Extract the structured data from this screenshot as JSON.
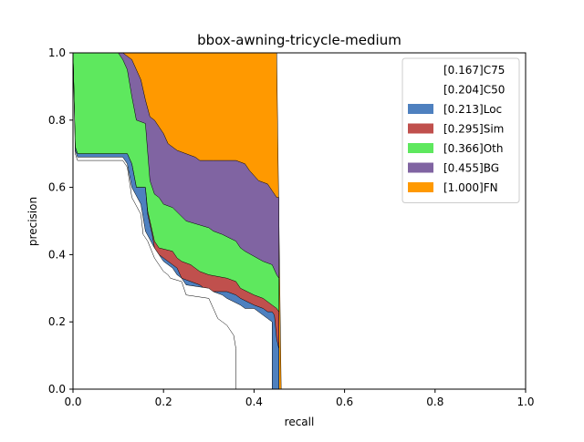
{
  "chart_data": {
    "type": "area",
    "title": "bbox-awning-tricycle-medium",
    "xlabel": "recall",
    "ylabel": "precision",
    "xlim": [
      0,
      1
    ],
    "ylim": [
      0,
      1
    ],
    "x_ticks": [
      "0.0",
      "0.2",
      "0.4",
      "0.6",
      "0.8",
      "1.0"
    ],
    "y_ticks": [
      "0.0",
      "0.2",
      "0.4",
      "0.6",
      "0.8",
      "1.0"
    ],
    "grid": false,
    "legend_position": "top-right",
    "series": [
      {
        "name": "[0.167]C75",
        "color": "#ffffff",
        "ap": 0.167,
        "x": [
          0.0,
          0.005,
          0.01,
          0.11,
          0.12,
          0.13,
          0.15,
          0.155,
          0.16,
          0.165,
          0.18,
          0.19,
          0.2,
          0.21,
          0.215,
          0.24,
          0.25,
          0.3,
          0.31,
          0.32,
          0.33,
          0.34,
          0.345,
          0.355,
          0.36,
          0.36
        ],
        "y": [
          1.0,
          0.7,
          0.68,
          0.68,
          0.66,
          0.57,
          0.52,
          0.46,
          0.45,
          0.44,
          0.39,
          0.37,
          0.35,
          0.34,
          0.33,
          0.32,
          0.28,
          0.27,
          0.24,
          0.21,
          0.2,
          0.19,
          0.18,
          0.16,
          0.12,
          0.0
        ]
      },
      {
        "name": "[0.204]C50",
        "color": "#ffffff",
        "ap": 0.204,
        "x": [
          0.0,
          0.005,
          0.01,
          0.11,
          0.12,
          0.13,
          0.15,
          0.16,
          0.18,
          0.19,
          0.2,
          0.22,
          0.23,
          0.24,
          0.25,
          0.3,
          0.31,
          0.33,
          0.34,
          0.37,
          0.38,
          0.4,
          0.41,
          0.42,
          0.43,
          0.44,
          0.44
        ],
        "y": [
          1.0,
          0.71,
          0.69,
          0.69,
          0.67,
          0.6,
          0.55,
          0.47,
          0.42,
          0.4,
          0.38,
          0.36,
          0.34,
          0.33,
          0.31,
          0.3,
          0.29,
          0.28,
          0.27,
          0.25,
          0.24,
          0.24,
          0.23,
          0.22,
          0.21,
          0.2,
          0.0
        ]
      },
      {
        "name": "[0.213]Loc",
        "color": "#4e80bf",
        "ap": 0.213,
        "x": [
          0.0,
          0.005,
          0.01,
          0.12,
          0.13,
          0.14,
          0.16,
          0.165,
          0.175,
          0.18,
          0.19,
          0.22,
          0.23,
          0.24,
          0.26,
          0.28,
          0.3,
          0.34,
          0.36,
          0.37,
          0.4,
          0.42,
          0.43,
          0.44,
          0.445,
          0.45,
          0.455,
          0.455
        ],
        "y": [
          1.0,
          0.72,
          0.7,
          0.7,
          0.67,
          0.6,
          0.6,
          0.52,
          0.46,
          0.42,
          0.4,
          0.37,
          0.36,
          0.33,
          0.32,
          0.31,
          0.29,
          0.29,
          0.28,
          0.27,
          0.25,
          0.24,
          0.23,
          0.23,
          0.22,
          0.15,
          0.12,
          0.0
        ]
      },
      {
        "name": "[0.295]Sim",
        "color": "#c0504d",
        "ap": 0.295,
        "x": [
          0.0,
          0.005,
          0.01,
          0.12,
          0.13,
          0.14,
          0.16,
          0.165,
          0.175,
          0.18,
          0.19,
          0.22,
          0.23,
          0.24,
          0.26,
          0.28,
          0.3,
          0.34,
          0.36,
          0.37,
          0.4,
          0.42,
          0.44,
          0.45,
          0.455,
          0.455
        ],
        "y": [
          1.0,
          0.72,
          0.7,
          0.7,
          0.67,
          0.6,
          0.6,
          0.53,
          0.47,
          0.44,
          0.42,
          0.41,
          0.39,
          0.38,
          0.37,
          0.35,
          0.34,
          0.33,
          0.32,
          0.3,
          0.28,
          0.27,
          0.25,
          0.24,
          0.23,
          0.0
        ]
      },
      {
        "name": "[0.366]Oth",
        "color": "#5ee85e",
        "ap": 0.366,
        "x": [
          0.0,
          0.03,
          0.1,
          0.11,
          0.12,
          0.13,
          0.14,
          0.16,
          0.17,
          0.18,
          0.19,
          0.2,
          0.22,
          0.25,
          0.3,
          0.31,
          0.33,
          0.36,
          0.37,
          0.38,
          0.42,
          0.44,
          0.45,
          0.455,
          0.455
        ],
        "y": [
          1.0,
          1.0,
          1.0,
          0.98,
          0.95,
          0.87,
          0.8,
          0.79,
          0.62,
          0.58,
          0.57,
          0.55,
          0.54,
          0.5,
          0.48,
          0.47,
          0.46,
          0.44,
          0.42,
          0.41,
          0.38,
          0.37,
          0.34,
          0.33,
          0.0
        ]
      },
      {
        "name": "[0.455]BG",
        "color": "#8064a2",
        "ap": 0.455,
        "x": [
          0.0,
          0.11,
          0.13,
          0.15,
          0.16,
          0.17,
          0.18,
          0.19,
          0.2,
          0.21,
          0.23,
          0.25,
          0.27,
          0.28,
          0.31,
          0.36,
          0.38,
          0.39,
          0.41,
          0.43,
          0.44,
          0.45,
          0.455,
          0.455
        ],
        "y": [
          1.0,
          1.0,
          0.98,
          0.92,
          0.86,
          0.81,
          0.8,
          0.78,
          0.76,
          0.73,
          0.71,
          0.7,
          0.69,
          0.68,
          0.68,
          0.68,
          0.67,
          0.65,
          0.62,
          0.61,
          0.59,
          0.57,
          0.57,
          0.0
        ]
      },
      {
        "name": "[1.000]FN",
        "color": "#ff9900",
        "ap": 1.0,
        "x": [
          0.0,
          0.45,
          0.46,
          1.0,
          1.0
        ],
        "y": [
          1.0,
          1.0,
          0.0,
          0.0,
          0.0
        ]
      }
    ]
  }
}
